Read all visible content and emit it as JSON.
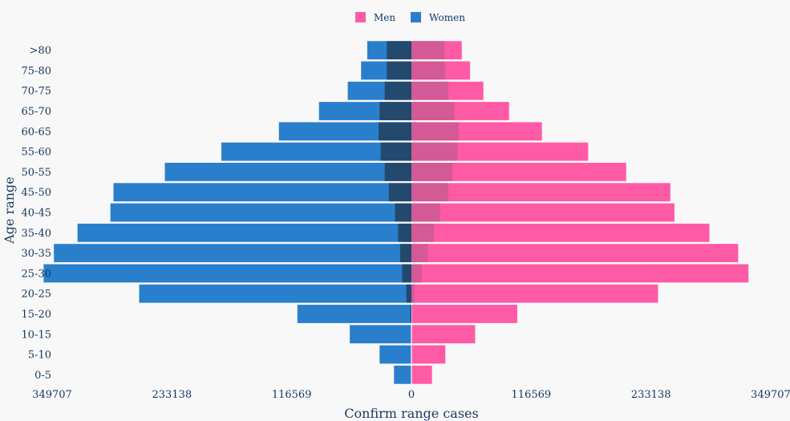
{
  "chart_data": {
    "type": "bar",
    "orientation": "horizontal-population-pyramid",
    "categories": [
      "0-5",
      "5-10",
      "10-15",
      "15-20",
      "20-25",
      "25-30",
      "30-35",
      "35-40",
      "40-45",
      "45-50",
      "50-55",
      "55-60",
      "60-65",
      "65-70",
      "70-75",
      "75-80",
      ">80"
    ],
    "series": [
      {
        "name": "Men",
        "color": "#ff5aa6",
        "values": [
          20000,
          33000,
          62000,
          103000,
          240000,
          328000,
          318000,
          290000,
          256000,
          252000,
          209000,
          172000,
          127000,
          95000,
          70000,
          57000,
          49000
        ]
      },
      {
        "name": "Women",
        "color": "#2a7fcc",
        "values": [
          17000,
          31000,
          60000,
          111000,
          265000,
          358000,
          348000,
          325000,
          293000,
          290000,
          240000,
          185000,
          129000,
          90000,
          62000,
          49000,
          43000
        ]
      }
    ],
    "overlay": {
      "description": "darker inner segments near the center axis",
      "men_color": "#d35a96",
      "women_color": "#234a6e",
      "men_values": [
        0,
        0,
        0,
        0,
        3000,
        10000,
        16000,
        22000,
        28000,
        36000,
        40000,
        45000,
        46000,
        42000,
        36000,
        33000,
        32000
      ],
      "women_values": [
        0,
        0,
        0,
        1000,
        5000,
        9000,
        11000,
        13000,
        16000,
        22000,
        26000,
        30000,
        32000,
        31000,
        26000,
        24000,
        24000
      ]
    },
    "x_ticks": [
      {
        "value": -349707,
        "label": "349707"
      },
      {
        "value": -233138,
        "label": "233138"
      },
      {
        "value": -116569,
        "label": "116569"
      },
      {
        "value": 0,
        "label": "0"
      },
      {
        "value": 116569,
        "label": "116569"
      },
      {
        "value": 233138,
        "label": "233138"
      },
      {
        "value": 349707,
        "label": "349707"
      }
    ],
    "xlim": [
      -349707,
      349707
    ],
    "xlabel": "Confirm range cases",
    "ylabel": "Age range",
    "legend_position": "top-center",
    "grid": false
  }
}
